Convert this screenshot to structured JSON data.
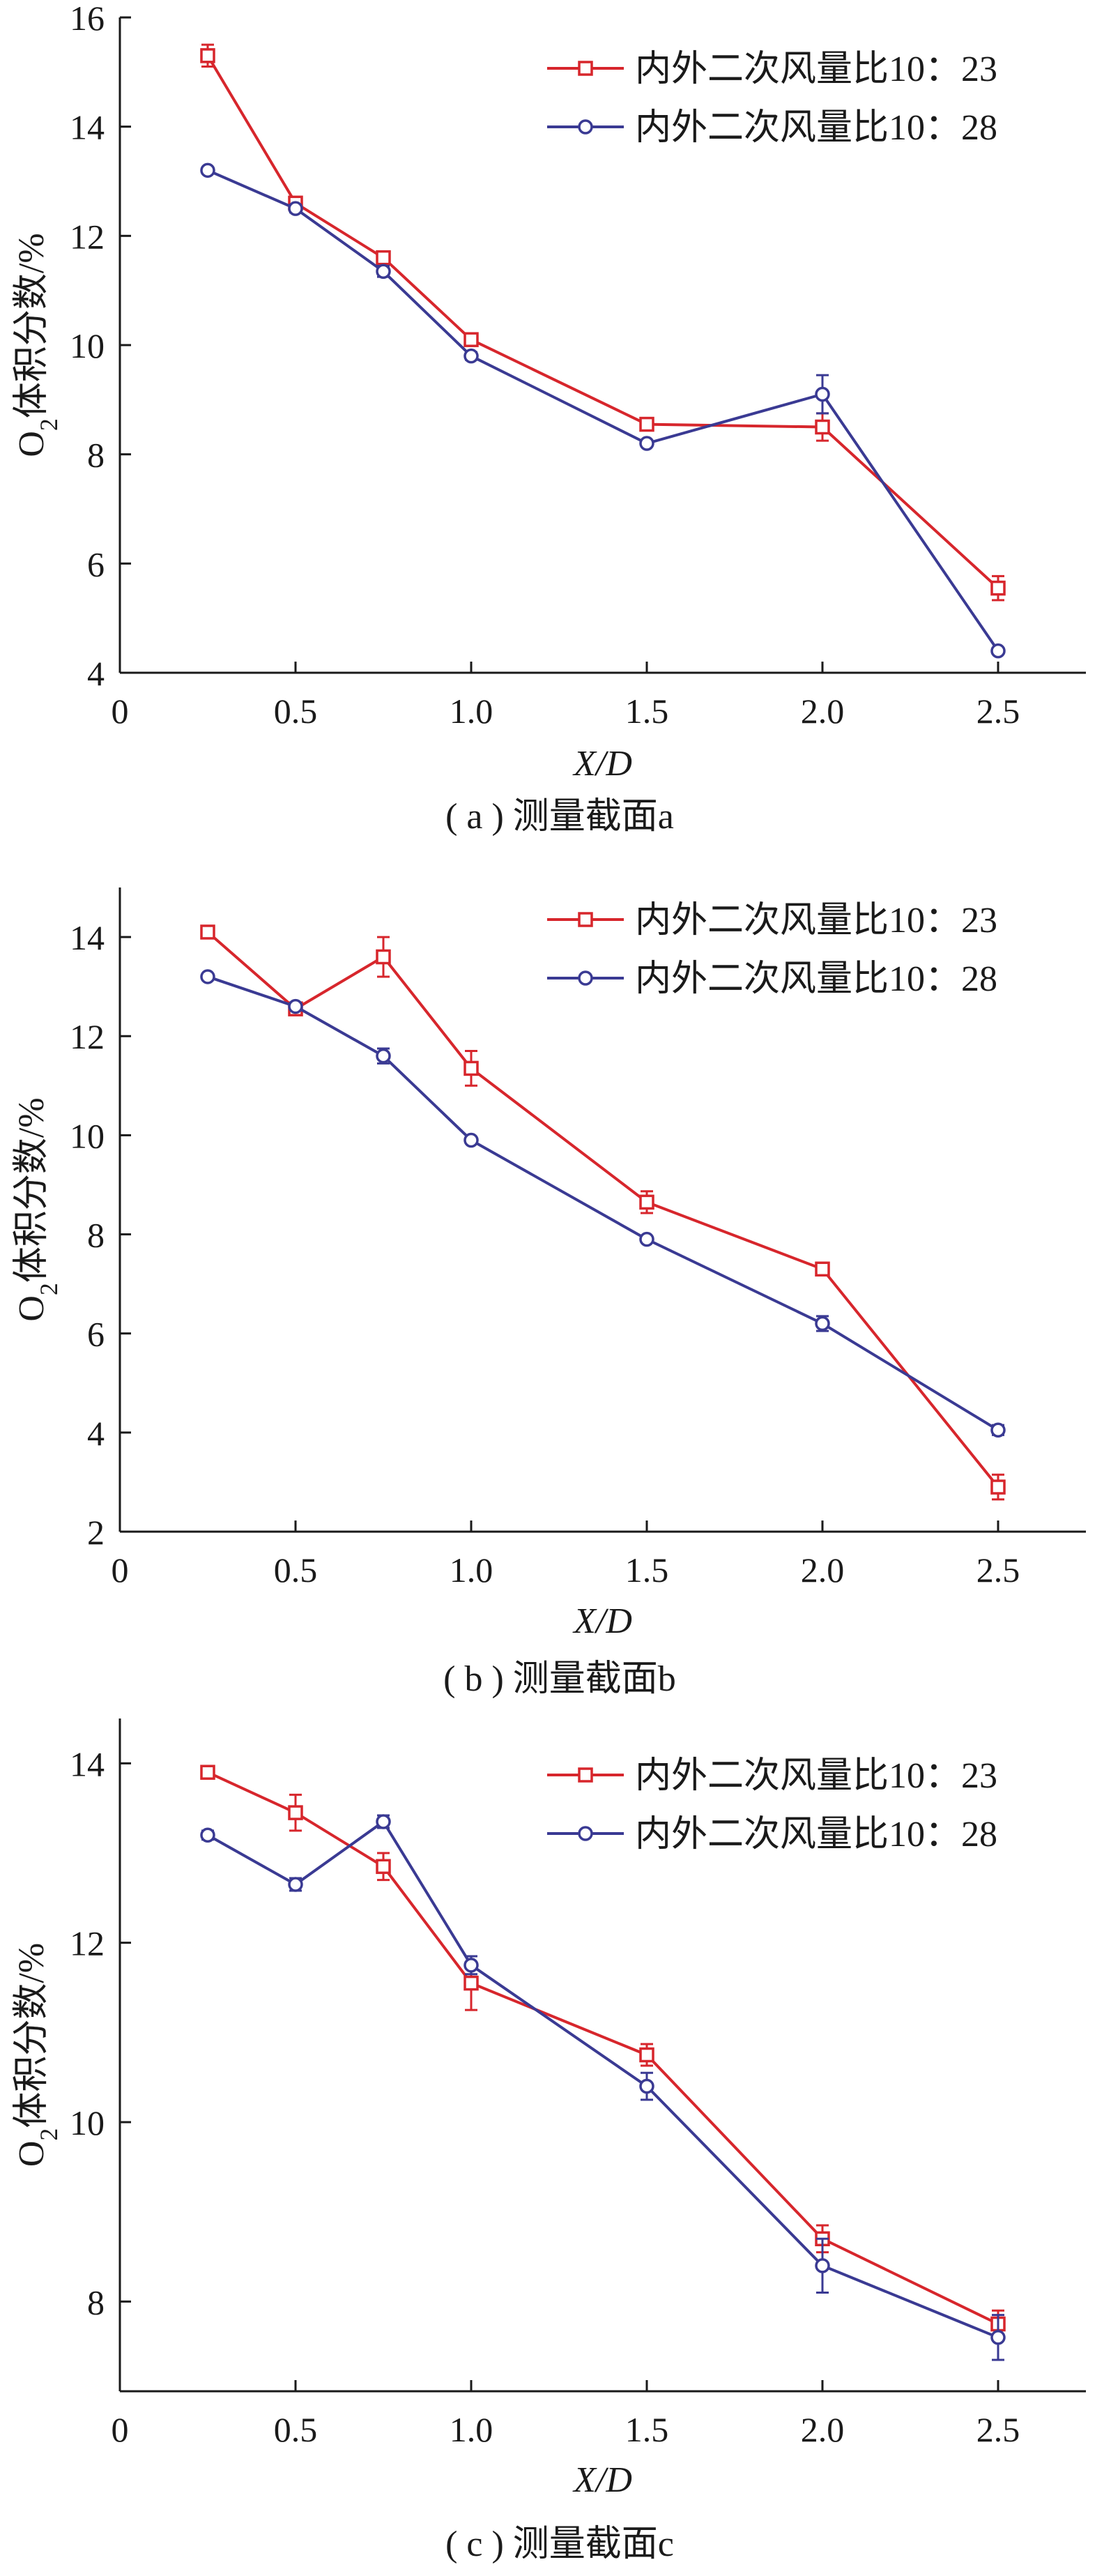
{
  "chart_data": [
    {
      "type": "line",
      "caption": "( a ) 测量截面a",
      "xlabel": "X/D",
      "ylabel_main": "O",
      "ylabel_sub": "2",
      "ylabel_rest": "体积分数/%",
      "xlim": [
        0,
        2.75
      ],
      "ylim": [
        4,
        16
      ],
      "xticks": [
        0,
        0.5,
        1.0,
        1.5,
        2.0,
        2.5
      ],
      "xtick_labels": [
        "0",
        "0.5",
        "1.0",
        "1.5",
        "2.0",
        "2.5"
      ],
      "yticks": [
        4,
        6,
        8,
        10,
        12,
        14,
        16
      ],
      "ytick_labels": [
        "4",
        "6",
        "8",
        "10",
        "12",
        "14",
        "16"
      ],
      "legend_position": "top-right",
      "x": [
        0.25,
        0.5,
        0.75,
        1.0,
        1.5,
        2.0,
        2.5
      ],
      "series": [
        {
          "name": "内外二次风量比10：23",
          "color": "#d7262c",
          "marker": "square",
          "values": [
            15.3,
            12.6,
            11.6,
            10.1,
            8.55,
            8.5,
            5.55
          ],
          "errors": [
            0.2,
            0.07,
            0.07,
            0.08,
            0.05,
            0.25,
            0.22
          ]
        },
        {
          "name": "内外二次风量比10：28",
          "color": "#3a3a93",
          "marker": "circle",
          "values": [
            13.2,
            12.5,
            11.35,
            9.8,
            8.2,
            9.1,
            4.4
          ],
          "errors": [
            0.05,
            0.07,
            0.1,
            0.07,
            0.05,
            0.35,
            0.05
          ]
        }
      ]
    },
    {
      "type": "line",
      "caption": "( b ) 测量截面b",
      "xlabel": "X/D",
      "ylabel_main": "O",
      "ylabel_sub": "2",
      "ylabel_rest": "体积分数/%",
      "xlim": [
        0,
        2.75
      ],
      "ylim": [
        2,
        15
      ],
      "xticks": [
        0,
        0.5,
        1.0,
        1.5,
        2.0,
        2.5
      ],
      "xtick_labels": [
        "0",
        "0.5",
        "1.0",
        "1.5",
        "2.0",
        "2.5"
      ],
      "yticks": [
        2,
        4,
        6,
        8,
        10,
        12,
        14
      ],
      "ytick_labels": [
        "2",
        "4",
        "6",
        "8",
        "10",
        "12",
        "14"
      ],
      "legend_position": "top-right",
      "x": [
        0.25,
        0.5,
        0.75,
        1.0,
        1.5,
        2.0,
        2.5
      ],
      "series": [
        {
          "name": "内外二次风量比10：23",
          "color": "#d7262c",
          "marker": "square",
          "values": [
            14.1,
            12.55,
            13.6,
            11.35,
            8.65,
            7.3,
            2.9
          ],
          "errors": [
            0.07,
            0.1,
            0.4,
            0.35,
            0.22,
            0.05,
            0.25
          ]
        },
        {
          "name": "内外二次风量比10：28",
          "color": "#3a3a93",
          "marker": "circle",
          "values": [
            13.2,
            12.6,
            11.6,
            9.9,
            7.9,
            6.2,
            4.05
          ],
          "errors": [
            0.05,
            0.07,
            0.15,
            0.05,
            0.05,
            0.15,
            0.1
          ]
        }
      ]
    },
    {
      "type": "line",
      "caption": "( c ) 测量截面c",
      "xlabel": "X/D",
      "ylabel_main": "O",
      "ylabel_sub": "2",
      "ylabel_rest": "体积分数/%",
      "xlim": [
        0,
        2.75
      ],
      "ylim": [
        7,
        14.5
      ],
      "xticks": [
        0,
        0.5,
        1.0,
        1.5,
        2.0,
        2.5
      ],
      "xtick_labels": [
        "0",
        "0.5",
        "1.0",
        "1.5",
        "2.0",
        "2.5"
      ],
      "yticks": [
        8,
        10,
        12,
        14
      ],
      "ytick_labels": [
        "8",
        "10",
        "12",
        "14"
      ],
      "legend_position": "top-right",
      "x": [
        0.25,
        0.5,
        0.75,
        1.0,
        1.5,
        2.0,
        2.5
      ],
      "series": [
        {
          "name": "内外二次风量比10：23",
          "color": "#d7262c",
          "marker": "square",
          "values": [
            13.9,
            13.45,
            12.85,
            11.55,
            10.75,
            8.7,
            7.75
          ],
          "errors": [
            0.05,
            0.2,
            0.15,
            0.3,
            0.12,
            0.15,
            0.15
          ]
        },
        {
          "name": "内外二次风量比10：28",
          "color": "#3a3a93",
          "marker": "circle",
          "values": [
            13.2,
            12.65,
            13.35,
            11.75,
            10.4,
            8.4,
            7.6
          ],
          "errors": [
            0.05,
            0.07,
            0.07,
            0.1,
            0.15,
            0.3,
            0.25
          ]
        }
      ]
    }
  ]
}
